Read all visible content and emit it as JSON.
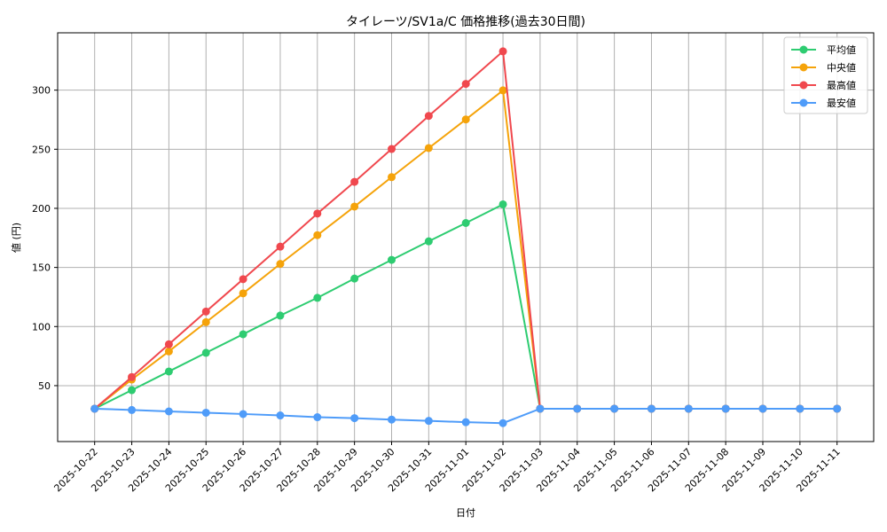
{
  "chart_data": {
    "type": "line",
    "title": "タイレーツ/SV1a/C 価格推移(過去30日間)",
    "xlabel": "日付",
    "ylabel": "値 (円)",
    "ylim": [
      2.7,
      348.5
    ],
    "yticks": [
      50,
      100,
      150,
      200,
      250,
      300
    ],
    "grid": true,
    "legend_position": "upper right",
    "x": [
      "2025-10-22",
      "2025-10-23",
      "2025-10-24",
      "2025-10-25",
      "2025-10-26",
      "2025-10-27",
      "2025-10-28",
      "2025-10-29",
      "2025-10-30",
      "2025-10-31",
      "2025-11-01",
      "2025-11-02",
      "2025-11-03",
      "2025-11-04",
      "2025-11-05",
      "2025-11-06",
      "2025-11-07",
      "2025-11-08",
      "2025-11-09",
      "2025-11-10",
      "2025-11-11"
    ],
    "series": [
      {
        "name": "平均値",
        "color": "#2ecc71",
        "values": [
          30.5,
          46.2,
          62.0,
          77.8,
          93.5,
          109.3,
          124.3,
          140.6,
          156.4,
          172.1,
          187.6,
          203.4,
          30.5,
          30.5,
          30.5,
          30.5,
          30.5,
          30.5,
          30.5,
          30.5,
          30.5
        ]
      },
      {
        "name": "中央値",
        "color": "#f5a30a",
        "values": [
          30.5,
          55.2,
          79.0,
          103.7,
          128.1,
          153.0,
          177.3,
          201.5,
          226.4,
          251.0,
          275.2,
          299.8,
          30.5,
          30.5,
          30.5,
          30.5,
          30.5,
          30.5,
          30.5,
          30.5,
          30.5
        ]
      },
      {
        "name": "最高値",
        "color": "#f0484e",
        "values": [
          30.5,
          57.3,
          85.0,
          112.7,
          140.1,
          167.6,
          195.6,
          222.4,
          250.2,
          278.2,
          305.3,
          332.8,
          30.5,
          30.5,
          30.5,
          30.5,
          30.5,
          30.5,
          30.5,
          30.5,
          30.5
        ]
      },
      {
        "name": "最安値",
        "color": "#4f9cf9",
        "values": [
          30.5,
          29.4,
          28.2,
          27.1,
          26.0,
          24.8,
          23.3,
          22.5,
          21.3,
          20.2,
          19.1,
          18.3,
          30.5,
          30.5,
          30.5,
          30.5,
          30.5,
          30.5,
          30.5,
          30.5,
          30.5
        ]
      }
    ]
  }
}
